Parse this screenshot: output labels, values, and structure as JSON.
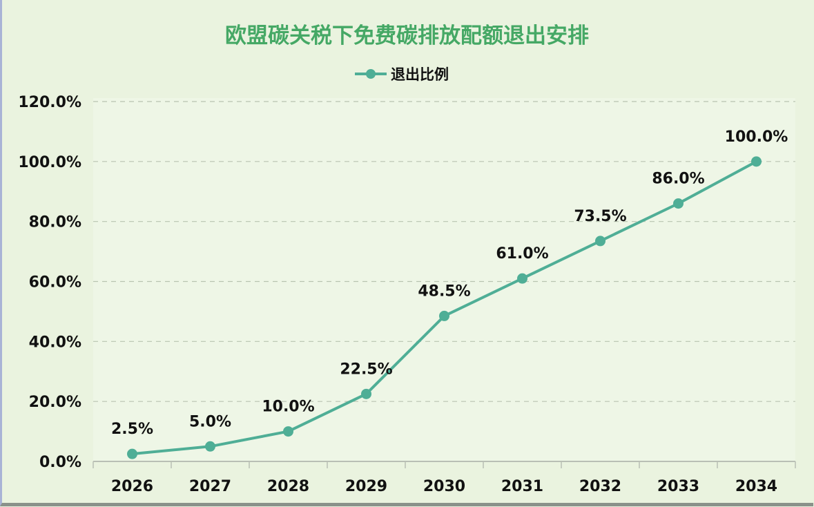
{
  "chart_data": {
    "type": "line",
    "title": "欧盟碳关税下免费碳排放配额退出安排",
    "categories": [
      "2026",
      "2027",
      "2028",
      "2029",
      "2030",
      "2031",
      "2032",
      "2033",
      "2034"
    ],
    "series": [
      {
        "name": "退出比例",
        "values": [
          2.5,
          5.0,
          10.0,
          22.5,
          48.5,
          61.0,
          73.5,
          86.0,
          100.0
        ],
        "color": "#4fae96"
      }
    ],
    "data_labels": [
      "2.5%",
      "5.0%",
      "10.0%",
      "22.5%",
      "48.5%",
      "61.0%",
      "73.5%",
      "86.0%",
      "100.0%"
    ],
    "y_ticks": [
      "0.0%",
      "20.0%",
      "40.0%",
      "60.0%",
      "80.0%",
      "100.0%",
      "120.0%"
    ],
    "ylim": [
      0,
      120
    ],
    "grid": "horizontal dashed",
    "legend_position": "top",
    "title_color": "#45a865",
    "background": "#eaf3df"
  }
}
